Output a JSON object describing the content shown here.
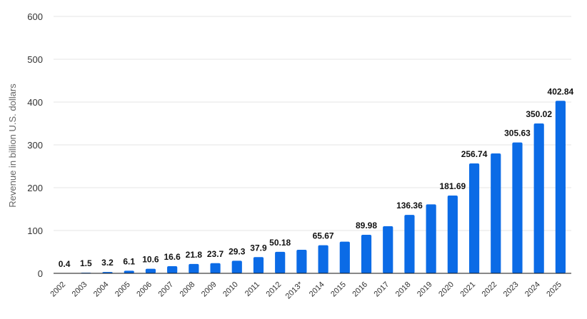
{
  "chart_data": {
    "type": "bar",
    "ylabel": "Revenue in billion U.S. dollars",
    "ylim": [
      0,
      600
    ],
    "yticks": [
      0,
      100,
      200,
      300,
      400,
      500,
      600
    ],
    "grid": true,
    "color": "#0b6be6",
    "categories": [
      "2002",
      "2003",
      "2004",
      "2005",
      "2006",
      "2007",
      "2008",
      "2009",
      "2010",
      "2011",
      "2012",
      "2013*",
      "2014",
      "2015",
      "2016",
      "2017",
      "2018",
      "2019",
      "2020",
      "2021",
      "2022",
      "2023",
      "2024",
      "2025"
    ],
    "values": [
      0.4,
      1.5,
      3.2,
      6.1,
      10.6,
      16.6,
      21.8,
      23.7,
      29.3,
      37.9,
      50.18,
      55,
      65.67,
      74,
      89.98,
      110,
      136.36,
      161,
      181.69,
      256.74,
      280,
      305.63,
      350.02,
      402.84
    ],
    "data_labels": [
      "0.4",
      "1.5",
      "3.2",
      "6.1",
      "10.6",
      "16.6",
      "21.8",
      "23.7",
      "29.3",
      "37.9",
      "50.18",
      "",
      "65.67",
      "",
      "89.98",
      "",
      "136.36",
      "",
      "181.69",
      "256.74",
      "",
      "305.63",
      "350.02",
      "402.84"
    ]
  }
}
